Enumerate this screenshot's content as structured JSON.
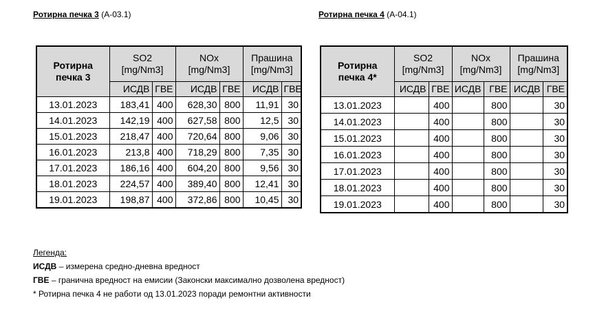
{
  "tables": [
    {
      "title": "Ротирна печка 3",
      "code": "(A-03.1)",
      "corner": "Ротирна печка 3",
      "groups": [
        "SO2 [mg/Nm3]",
        "NOx [mg/Nm3]",
        "Прашина [mg/Nm3]"
      ],
      "sub": [
        "ИСДВ",
        "ГВЕ",
        "ИСДВ",
        "ГВЕ",
        "ИСДВ",
        "ГВЕ"
      ],
      "rows": [
        [
          "13.01.2023",
          "183,41",
          "400",
          "628,30",
          "800",
          "11,91",
          "30"
        ],
        [
          "14.01.2023",
          "142,19",
          "400",
          "627,58",
          "800",
          "12,5",
          "30"
        ],
        [
          "15.01.2023",
          "218,47",
          "400",
          "720,64",
          "800",
          "9,06",
          "30"
        ],
        [
          "16.01.2023",
          "213,8",
          "400",
          "718,29",
          "800",
          "7,35",
          "30"
        ],
        [
          "17.01.2023",
          "186,16",
          "400",
          "604,20",
          "800",
          "9,56",
          "30"
        ],
        [
          "18.01.2023",
          "224,57",
          "400",
          "389,40",
          "800",
          "12,41",
          "30"
        ],
        [
          "19.01.2023",
          "198,87",
          "400",
          "372,86",
          "800",
          "10,45",
          "30"
        ]
      ]
    },
    {
      "title": "Ротирна печка 4",
      "code": "(A-04.1)",
      "corner": "Ротирна печка 4*",
      "groups": [
        "SO2 [mg/Nm3]",
        "NOx [mg/Nm3]",
        "Прашина [mg/Nm3]"
      ],
      "sub": [
        "ИСДВ",
        "ГВЕ",
        "ИСДВ",
        "ГВЕ",
        "ИСДВ",
        "ГВЕ"
      ],
      "rows": [
        [
          "13.01.2023",
          "",
          "400",
          "",
          "800",
          "",
          "30"
        ],
        [
          "14.01.2023",
          "",
          "400",
          "",
          "800",
          "",
          "30"
        ],
        [
          "15.01.2023",
          "",
          "400",
          "",
          "800",
          "",
          "30"
        ],
        [
          "16.01.2023",
          "",
          "400",
          "",
          "800",
          "",
          "30"
        ],
        [
          "17.01.2023",
          "",
          "400",
          "",
          "800",
          "",
          "30"
        ],
        [
          "18.01.2023",
          "",
          "400",
          "",
          "800",
          "",
          "30"
        ],
        [
          "19.01.2023",
          "",
          "400",
          "",
          "800",
          "",
          "30"
        ]
      ]
    }
  ],
  "legend": {
    "heading": "Легенда",
    "items": [
      {
        "term": "ИСДВ",
        "text": " – измерена средно-дневна вредност"
      },
      {
        "term": "ГВЕ",
        "text": " – гранична вредност на емисии (Законски максимално дозволена вредност)"
      },
      {
        "term": "",
        "text": "* Ротирна печка 4 не работи од 13.01.2023 поради ремонтни активности"
      }
    ]
  }
}
